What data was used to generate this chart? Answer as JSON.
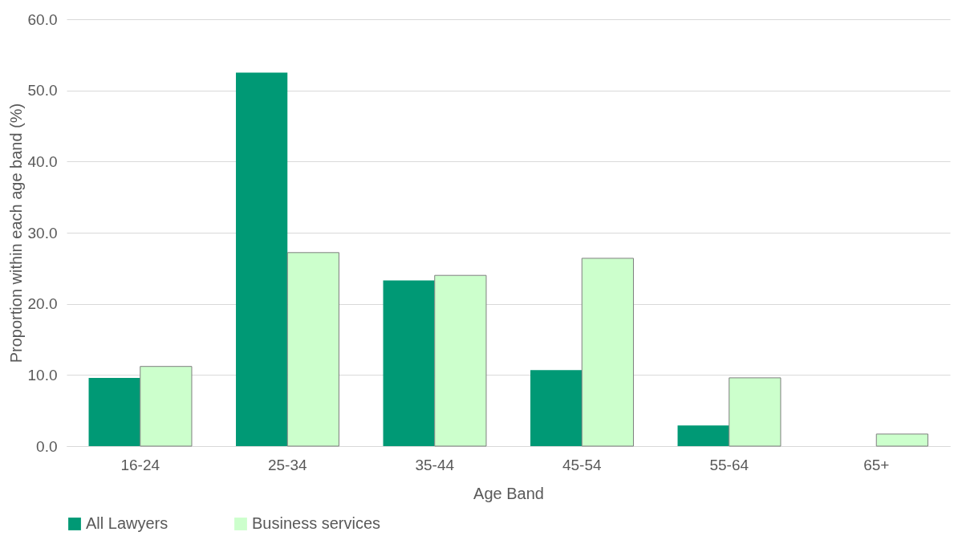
{
  "chart_data": {
    "type": "bar",
    "xlabel": "Age Band",
    "ylabel": "Proportion within each age band (%)",
    "categories": [
      "16-24",
      "25-34",
      "35-44",
      "45-54",
      "55-64",
      "65+"
    ],
    "series": [
      {
        "name": "All Lawyers",
        "color": "#009975",
        "values": [
          9.6,
          52.5,
          23.3,
          10.7,
          2.9,
          null
        ]
      },
      {
        "name": "Business services",
        "color": "#ccffcc",
        "values": [
          11.2,
          27.2,
          24.0,
          26.4,
          9.6,
          1.7
        ]
      }
    ],
    "ylim": [
      0,
      60
    ],
    "yticks": [
      {
        "value": 0,
        "label": "0.0"
      },
      {
        "value": 10,
        "label": "10.0"
      },
      {
        "value": 20,
        "label": "20.0"
      },
      {
        "value": 30,
        "label": "30.0"
      },
      {
        "value": 40,
        "label": "40.0"
      },
      {
        "value": 50,
        "label": "50.0"
      },
      {
        "value": 60,
        "label": "60.0"
      }
    ],
    "grid": "y",
    "legend": "bottom"
  }
}
